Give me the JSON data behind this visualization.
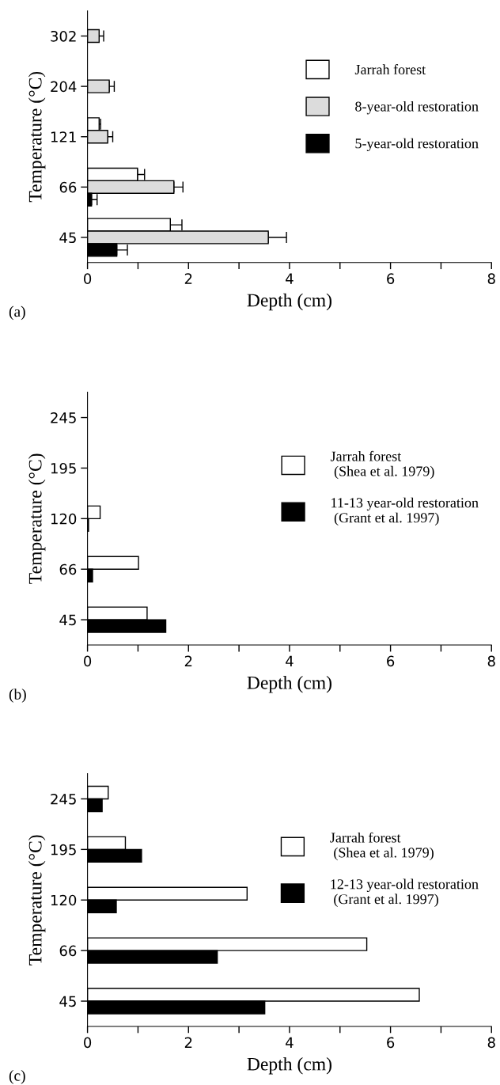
{
  "chart_data": [
    {
      "type": "bar",
      "orientation": "horizontal",
      "ylabel": "Temperature (°C)",
      "xlabel": "Depth (cm)",
      "categories": [
        "302",
        "204",
        "121",
        "66",
        "45"
      ],
      "xlim": [
        0,
        8
      ],
      "xticks": [
        0,
        {
          "value": 1,
          "label": null
        },
        2,
        {
          "value": 3,
          "label": null
        },
        4,
        {
          "value": 5,
          "label": null
        },
        6,
        {
          "value": 7,
          "label": null
        },
        8
      ],
      "legend": "right",
      "grid": false,
      "annotations": [
        "(a)"
      ],
      "series": [
        {
          "name": "Jarrah forest",
          "color": "#ffffff",
          "values": [
            null,
            null,
            0.23,
            0.99,
            1.64
          ],
          "errors": [
            null,
            null,
            [
              0.23,
              0.26
            ],
            [
              0.99,
              1.13
            ],
            [
              1.64,
              1.87
            ]
          ]
        },
        {
          "name": "8-year-old restoration",
          "color": "#dcdcdc",
          "values": [
            0.23,
            0.43,
            0.4,
            1.71,
            3.58
          ],
          "errors": [
            [
              0.23,
              0.32
            ],
            [
              0.43,
              0.53
            ],
            [
              0.4,
              0.5
            ],
            [
              1.71,
              1.89
            ],
            [
              3.58,
              3.94
            ]
          ]
        },
        {
          "name": "5-year-old restoration",
          "color": "#000000",
          "values": [
            null,
            null,
            null,
            0.08,
            0.58
          ],
          "errors": [
            null,
            null,
            null,
            [
              0.08,
              0.19
            ],
            [
              0.58,
              0.79
            ]
          ]
        }
      ]
    },
    {
      "type": "bar",
      "orientation": "horizontal",
      "ylabel": "Temperature (°C)",
      "xlabel": "Depth (cm)",
      "categories": [
        "245",
        "195",
        "120",
        "66",
        "45"
      ],
      "xlim": [
        0,
        8
      ],
      "xticks": [
        0,
        {
          "value": 1,
          "label": null
        },
        2,
        {
          "value": 3,
          "label": null
        },
        4,
        {
          "value": 5,
          "label": null
        },
        6,
        {
          "value": 7,
          "label": null
        },
        8
      ],
      "legend": "right",
      "grid": false,
      "annotations": [
        "(b)"
      ],
      "series": [
        {
          "name": "Jarrah forest\n (Shea et al. 1979)",
          "color": "#ffffff",
          "values": [
            null,
            null,
            0.25,
            1.01,
            1.18
          ]
        },
        {
          "name": "11-13 year-old restoration\n (Grant et al. 1997)",
          "color": "#000000",
          "values": [
            null,
            null,
            0.02,
            0.1,
            1.55
          ]
        }
      ]
    },
    {
      "type": "bar",
      "orientation": "horizontal",
      "ylabel": "Temperature (°C)",
      "xlabel": "Depth (cm)",
      "categories": [
        "245",
        "195",
        "120",
        "66",
        "45"
      ],
      "xlim": [
        0,
        8
      ],
      "xticks": [
        0,
        {
          "value": 1,
          "label": null
        },
        2,
        {
          "value": 3,
          "label": null
        },
        4,
        {
          "value": 5,
          "label": null
        },
        6,
        {
          "value": 7,
          "label": null
        },
        8
      ],
      "legend": "right",
      "grid": false,
      "annotations": [
        "(c)"
      ],
      "series": [
        {
          "name": "Jarrah forest\n (Shea et al. 1979)",
          "color": "#ffffff",
          "values": [
            0.41,
            0.75,
            3.16,
            5.53,
            6.57
          ]
        },
        {
          "name": "12-13 year-old restoration\n (Grant et al. 1997)",
          "color": "#000000",
          "values": [
            0.29,
            1.07,
            0.57,
            2.57,
            3.51
          ]
        }
      ]
    }
  ]
}
